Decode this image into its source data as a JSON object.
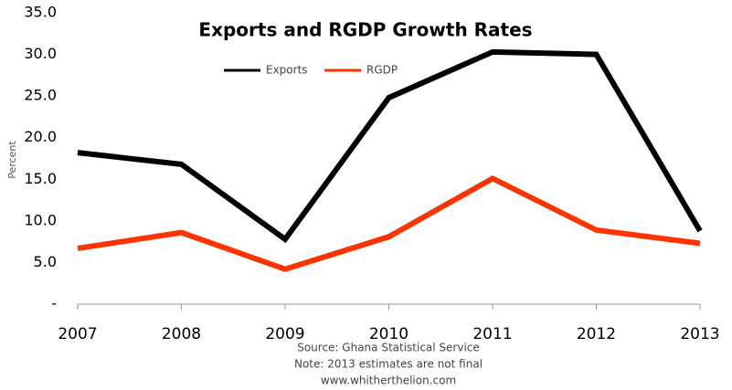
{
  "chart_data": {
    "type": "line",
    "title": "Exports and RGDP Growth Rates",
    "y_label": "Percent",
    "categories": [
      "2007",
      "2008",
      "2009",
      "2010",
      "2011",
      "2012",
      "2013"
    ],
    "series": [
      {
        "name": "Exports",
        "color": "#000000",
        "values": [
          18.2,
          16.8,
          7.8,
          24.8,
          30.3,
          30.0,
          8.8
        ]
      },
      {
        "name": "RGDP",
        "color": "#ff3300",
        "values": [
          6.7,
          8.6,
          4.2,
          8.1,
          15.1,
          8.9,
          7.3
        ]
      }
    ],
    "ylim": [
      0,
      35
    ],
    "yticks": [
      {
        "value": 0,
        "label": "-"
      },
      {
        "value": 5,
        "label": "5.0"
      },
      {
        "value": 10,
        "label": "10.0"
      },
      {
        "value": 15,
        "label": "15.0"
      },
      {
        "value": 20,
        "label": "20.0"
      },
      {
        "value": 25,
        "label": "25.0"
      },
      {
        "value": 30,
        "label": "30.0"
      },
      {
        "value": 35,
        "label": "35.0"
      }
    ],
    "grid": false,
    "legend": "top",
    "notes": [
      "Source: Ghana Statistical Service",
      "Note: 2013 estimates are not final",
      "www.whitherthelion.com"
    ]
  }
}
